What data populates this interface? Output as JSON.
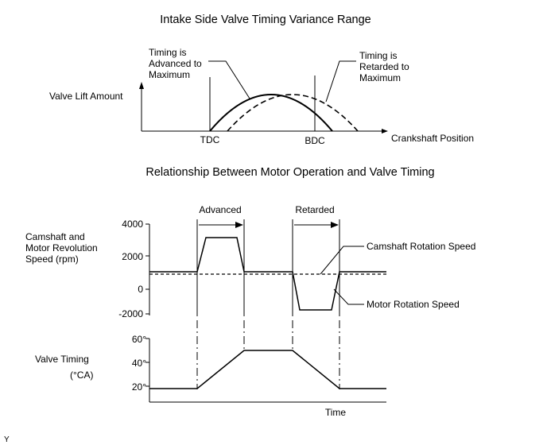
{
  "top_diagram": {
    "title": "Intake Side Valve Timing Variance Range",
    "y_label": "Valve Lift Amount",
    "x_label": "Crankshaft Position",
    "tdc_label": "TDC",
    "bdc_label": "BDC",
    "advanced_note": [
      "Timing is",
      "Advanced to",
      "Maximum"
    ],
    "retarded_note": [
      "Timing is",
      "Retarded to",
      "Maximum"
    ]
  },
  "bottom_diagram": {
    "title": "Relationship Between Motor Operation and Valve Timing",
    "speed_axis_label": [
      "Camshaft and",
      "Motor Revolution",
      "Speed (rpm)"
    ],
    "speed_ticks": [
      "4000",
      "2000",
      "0",
      "-2000"
    ],
    "advanced_label": "Advanced",
    "retarded_label": "Retarded",
    "camshaft_speed_label": "Camshaft Rotation Speed",
    "motor_speed_label": "Motor Rotation Speed",
    "timing_axis_label": [
      "Valve Timing",
      "(°CA)"
    ],
    "timing_ticks": [
      "60°",
      "40°",
      "20°"
    ],
    "time_label": "Time"
  },
  "corner_mark": "Y"
}
